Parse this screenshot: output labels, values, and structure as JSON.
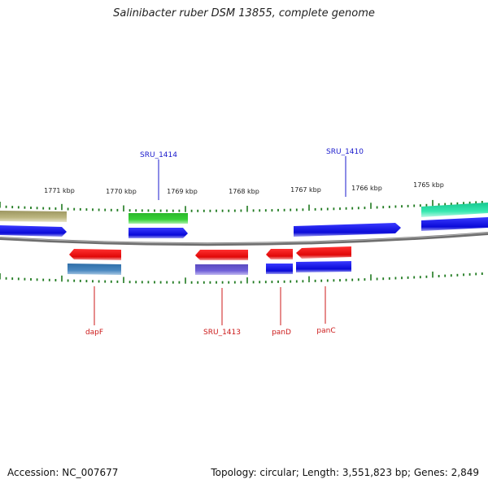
{
  "title": "Salinibacter ruber DSM 13855, complete genome",
  "footer": {
    "accession": "Accession: NC_007677",
    "topology": "Topology: circular; Length: 3,551,823 bp; Genes: 2,849"
  },
  "ruler_labels": [
    "1771 kbp",
    "1770 kbp",
    "1769 kbp",
    "1768 kbp",
    "1767 kbp",
    "1766 kbp",
    "1765 kbp"
  ],
  "gene_labels_top": [
    "SRU_1414",
    "SRU_1410"
  ],
  "gene_labels_bottom": [
    "dapF",
    "SRU_1413",
    "panD",
    "panC"
  ],
  "colors": {
    "label_top": "#1a1acc",
    "label_bottom": "#cc1a1a",
    "tick": "#1f7a1f",
    "backbone": "#7a7a7a",
    "blue": "#1010e0",
    "red": "#ee1010",
    "green": "#2ecc2e",
    "olive": "#b8b27a",
    "teal": "#2fe0a8",
    "steel": "#3f7fb8",
    "purple": "#6a5acd"
  }
}
